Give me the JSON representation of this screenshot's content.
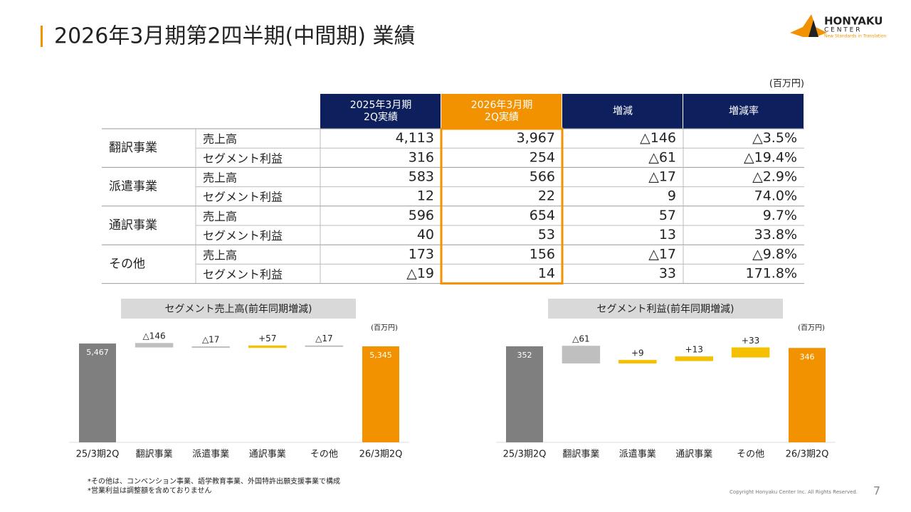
{
  "header": {
    "title": "2026年3月期第2四半期(中間期) 業績",
    "logo": {
      "name": "HONYAKU",
      "sub": "C E N T E R",
      "tagline": "New Standards in Translation"
    }
  },
  "table": {
    "unit": "(百万円)",
    "headers": [
      [
        "2025年3月期",
        "2Q実績"
      ],
      [
        "2026年3月期",
        "2Q実績"
      ],
      [
        "増減"
      ],
      [
        "増減率"
      ]
    ],
    "rows": [
      {
        "segment": "翻訳事業",
        "items": [
          {
            "metric": "売上高",
            "cells": [
              "4,113",
              "3,967",
              "△146",
              "△3.5%"
            ]
          },
          {
            "metric": "セグメント利益",
            "cells": [
              "316",
              "254",
              "△61",
              "△19.4%"
            ]
          }
        ]
      },
      {
        "segment": "派遣事業",
        "items": [
          {
            "metric": "売上高",
            "cells": [
              "583",
              "566",
              "△17",
              "△2.9%"
            ]
          },
          {
            "metric": "セグメント利益",
            "cells": [
              "12",
              "22",
              "9",
              "74.0%"
            ]
          }
        ]
      },
      {
        "segment": "通訳事業",
        "items": [
          {
            "metric": "売上高",
            "cells": [
              "596",
              "654",
              "57",
              "9.7%"
            ]
          },
          {
            "metric": "セグメント利益",
            "cells": [
              "40",
              "53",
              "13",
              "33.8%"
            ]
          }
        ]
      },
      {
        "segment": "その他",
        "items": [
          {
            "metric": "売上高",
            "cells": [
              "173",
              "156",
              "△17",
              "△9.8%"
            ]
          },
          {
            "metric": "セグメント利益",
            "cells": [
              "△19",
              "14",
              "33",
              "171.8%"
            ]
          }
        ]
      }
    ]
  },
  "chart_data": [
    {
      "type": "waterfall",
      "title": "セグメント売上高(前年同期増減)",
      "unit": "(百万円)",
      "categories": [
        "25/3期2Q",
        "翻訳事業",
        "派遣事業",
        "通訳事業",
        "その他",
        "26/3期2Q"
      ],
      "values": [
        5467,
        -146,
        -17,
        57,
        -17,
        5345
      ],
      "value_labels": [
        "5,467",
        "△146",
        "△17",
        "+57",
        "△17",
        "5,345"
      ],
      "colors": [
        "#7f7f7f",
        "#bfbfbf",
        "#bfbfbf",
        "#f5c000",
        "#bfbfbf",
        "#f39200"
      ],
      "ylim": [
        1200,
        5500
      ]
    },
    {
      "type": "waterfall",
      "title": "セグメント利益(前年同期増減)",
      "unit": "(百万円)",
      "categories": [
        "25/3期2Q",
        "翻訳事業",
        "派遣事業",
        "通訳事業",
        "その他",
        "26/3期2Q"
      ],
      "values": [
        352,
        -61,
        9,
        13,
        33,
        346
      ],
      "value_labels": [
        "352",
        "△61",
        "+9",
        "+13",
        "+33",
        "346"
      ],
      "colors": [
        "#7f7f7f",
        "#bfbfbf",
        "#f5c000",
        "#f5c000",
        "#f5c000",
        "#f39200"
      ],
      "ylim": [
        0,
        365
      ]
    }
  ],
  "footnotes": [
    "*その他は、コンベンション事業、語学教育事業、外国特許出願支援事業で構成",
    "*営業利益は調整額を含めておりません"
  ],
  "footer": {
    "copyright": "Copyright Honyaku Center Inc. All Rights Reserved.",
    "page": "7"
  }
}
